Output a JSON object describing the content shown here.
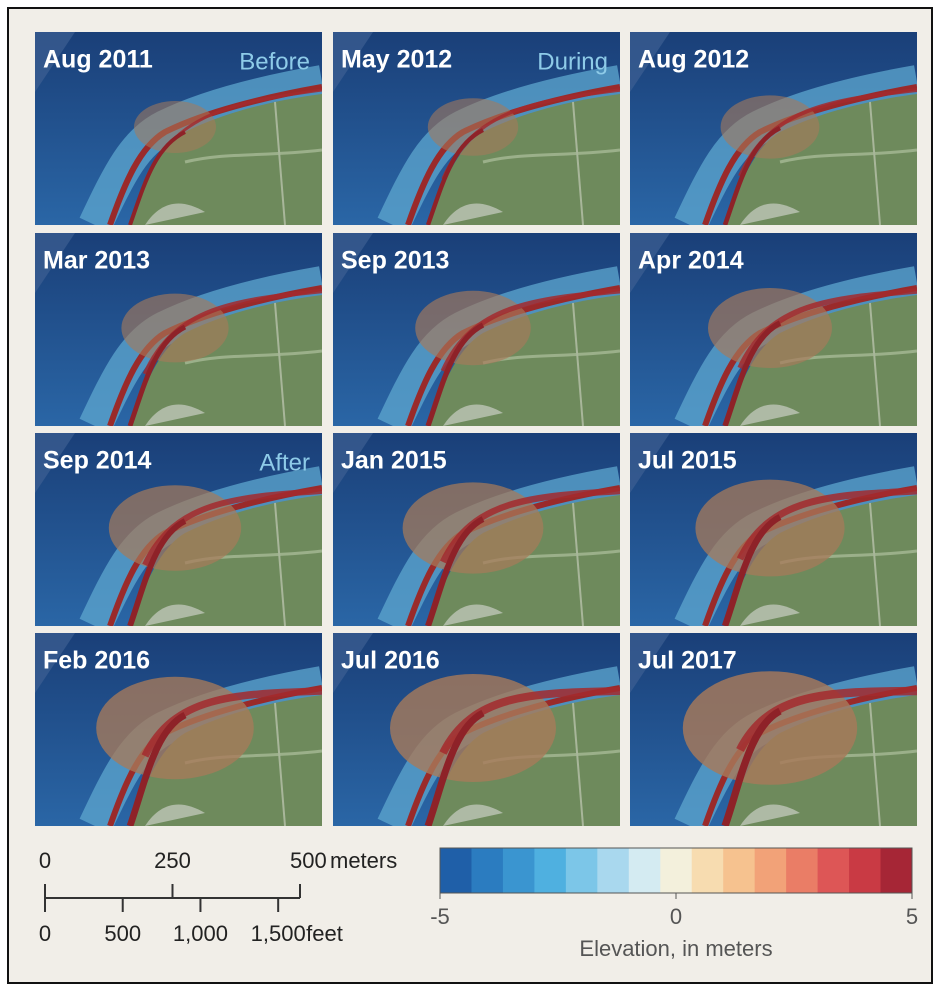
{
  "panels": [
    {
      "label": "Aug 2011",
      "tag": "Before"
    },
    {
      "label": "May 2012",
      "tag": "During"
    },
    {
      "label": "Aug 2012"
    },
    {
      "label": "Mar 2013"
    },
    {
      "label": "Sep 2013"
    },
    {
      "label": "Apr 2014"
    },
    {
      "label": "Sep 2014",
      "tag": "After"
    },
    {
      "label": "Jan 2015"
    },
    {
      "label": "Jul 2015"
    },
    {
      "label": "Feb 2016"
    },
    {
      "label": "Jul 2016"
    },
    {
      "label": "Jul 2017"
    }
  ],
  "scale_bar": {
    "meters": {
      "ticks": [
        0,
        250,
        500
      ],
      "unit": "meters"
    },
    "feet": {
      "ticks": [
        0,
        500,
        {
          "value": 1000,
          "label": "1,000"
        },
        {
          "value": 1500,
          "label": "1,500"
        }
      ],
      "unit": "feet"
    }
  },
  "colorbar": {
    "lim": [
      -5,
      5
    ],
    "ticks": [
      -5,
      0,
      5
    ],
    "title": "Elevation, in meters",
    "colors": [
      "#1f5fa8",
      "#2b7cc0",
      "#3a95d0",
      "#4fb0e0",
      "#7cc6e8",
      "#a9d8ee",
      "#d4ebf2",
      "#f3f0dc",
      "#f7dcb0",
      "#f6c28f",
      "#f2a278",
      "#ea7d66",
      "#dd5656",
      "#c93a44",
      "#a62636"
    ]
  }
}
